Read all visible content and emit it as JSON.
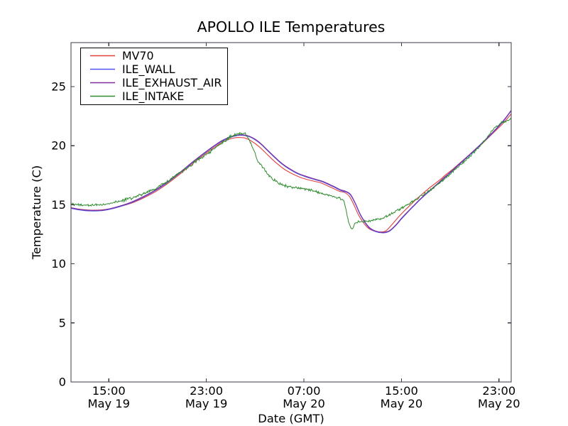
{
  "chart_data": {
    "type": "line",
    "title": "APOLLO ILE Temperatures",
    "xlabel": "Date (GMT)",
    "ylabel": "Temperature (C)",
    "grid": false,
    "legend_position": "upper left",
    "ylim": [
      0,
      28.7
    ],
    "yticks": [
      {
        "value": 0,
        "label": "0"
      },
      {
        "value": 5,
        "label": "5"
      },
      {
        "value": 10,
        "label": "10"
      },
      {
        "value": 15,
        "label": "15"
      },
      {
        "value": 20,
        "label": "20"
      },
      {
        "value": 25,
        "label": "25"
      }
    ],
    "x_axis_note": "t = hours from left edge (~12:00 May 19) to right edge (~24:00 May 20)",
    "xlim_hours": [
      0,
      36.1
    ],
    "xticks": [
      {
        "t": 3.1,
        "time": "15:00",
        "date": "May 19"
      },
      {
        "t": 11.1,
        "time": "23:00",
        "date": "May 19"
      },
      {
        "t": 19.1,
        "time": "07:00",
        "date": "May 20"
      },
      {
        "t": 27.1,
        "time": "15:00",
        "date": "May 20"
      },
      {
        "t": 35.1,
        "time": "23:00",
        "date": "May 20"
      }
    ],
    "series": [
      {
        "name": "MV70",
        "color": "#e14040",
        "style": "smooth",
        "points": [
          [
            0,
            14.75
          ],
          [
            0.7,
            14.62
          ],
          [
            1.5,
            14.55
          ],
          [
            2.5,
            14.56
          ],
          [
            3.2,
            14.66
          ],
          [
            4,
            14.85
          ],
          [
            5,
            15.15
          ],
          [
            6,
            15.6
          ],
          [
            7,
            16.15
          ],
          [
            8,
            16.85
          ],
          [
            9,
            17.65
          ],
          [
            10,
            18.5
          ],
          [
            11,
            19.3
          ],
          [
            11.8,
            19.9
          ],
          [
            12.5,
            20.35
          ],
          [
            13.2,
            20.62
          ],
          [
            13.8,
            20.7
          ],
          [
            14.4,
            20.6
          ],
          [
            15,
            20.25
          ],
          [
            15.5,
            19.85
          ],
          [
            16,
            19.35
          ],
          [
            16.5,
            18.85
          ],
          [
            17,
            18.4
          ],
          [
            17.5,
            18.0
          ],
          [
            18,
            17.7
          ],
          [
            18.5,
            17.45
          ],
          [
            19,
            17.25
          ],
          [
            19.5,
            17.1
          ],
          [
            20,
            16.98
          ],
          [
            20.5,
            16.85
          ],
          [
            21,
            16.62
          ],
          [
            21.5,
            16.38
          ],
          [
            22,
            16.15
          ],
          [
            22.4,
            16.05
          ],
          [
            22.8,
            15.75
          ],
          [
            23.2,
            15.0
          ],
          [
            23.6,
            14.1
          ],
          [
            24,
            13.45
          ],
          [
            24.4,
            13.0
          ],
          [
            24.8,
            12.8
          ],
          [
            25.3,
            12.7
          ],
          [
            25.8,
            12.78
          ],
          [
            26.3,
            13.3
          ],
          [
            26.8,
            13.9
          ],
          [
            27.3,
            14.45
          ],
          [
            27.8,
            14.95
          ],
          [
            28.3,
            15.45
          ],
          [
            28.8,
            15.9
          ],
          [
            29.3,
            16.35
          ],
          [
            29.8,
            16.75
          ],
          [
            30.3,
            17.15
          ],
          [
            30.8,
            17.6
          ],
          [
            31.3,
            18.0
          ],
          [
            31.8,
            18.45
          ],
          [
            32.3,
            18.9
          ],
          [
            32.8,
            19.35
          ],
          [
            33.3,
            19.8
          ],
          [
            33.8,
            20.25
          ],
          [
            34.3,
            20.75
          ],
          [
            34.8,
            21.25
          ],
          [
            35.3,
            21.75
          ],
          [
            35.7,
            22.2
          ],
          [
            36.1,
            22.7
          ]
        ]
      },
      {
        "name": "ILE_WALL",
        "color": "#5152ec",
        "style": "smooth",
        "points": [
          [
            0,
            14.7
          ],
          [
            0.7,
            14.56
          ],
          [
            1.5,
            14.48
          ],
          [
            2.5,
            14.5
          ],
          [
            3.2,
            14.62
          ],
          [
            4,
            14.84
          ],
          [
            5,
            15.2
          ],
          [
            6,
            15.68
          ],
          [
            7,
            16.25
          ],
          [
            8,
            16.95
          ],
          [
            9,
            17.75
          ],
          [
            10,
            18.6
          ],
          [
            11,
            19.4
          ],
          [
            11.8,
            20.0
          ],
          [
            12.5,
            20.45
          ],
          [
            13.3,
            20.78
          ],
          [
            13.9,
            20.88
          ],
          [
            14.5,
            20.8
          ],
          [
            15.1,
            20.5
          ],
          [
            15.6,
            20.1
          ],
          [
            16.1,
            19.6
          ],
          [
            16.6,
            19.1
          ],
          [
            17.1,
            18.62
          ],
          [
            17.6,
            18.22
          ],
          [
            18.1,
            17.9
          ],
          [
            18.6,
            17.62
          ],
          [
            19.1,
            17.42
          ],
          [
            19.6,
            17.25
          ],
          [
            20.1,
            17.1
          ],
          [
            20.6,
            16.95
          ],
          [
            21.1,
            16.72
          ],
          [
            21.6,
            16.48
          ],
          [
            22.1,
            16.22
          ],
          [
            22.5,
            16.1
          ],
          [
            22.9,
            15.85
          ],
          [
            23.3,
            15.12
          ],
          [
            23.7,
            14.2
          ],
          [
            24.1,
            13.5
          ],
          [
            24.5,
            13.0
          ],
          [
            25,
            12.72
          ],
          [
            25.6,
            12.62
          ],
          [
            26.1,
            12.75
          ],
          [
            26.6,
            13.2
          ],
          [
            27.1,
            13.8
          ],
          [
            27.6,
            14.35
          ],
          [
            28.1,
            14.88
          ],
          [
            28.6,
            15.4
          ],
          [
            29.1,
            15.88
          ],
          [
            29.6,
            16.32
          ],
          [
            30.1,
            16.78
          ],
          [
            30.6,
            17.25
          ],
          [
            31.1,
            17.7
          ],
          [
            31.6,
            18.18
          ],
          [
            32.1,
            18.65
          ],
          [
            32.6,
            19.12
          ],
          [
            33.1,
            19.6
          ],
          [
            33.6,
            20.08
          ],
          [
            34.1,
            20.58
          ],
          [
            34.6,
            21.1
          ],
          [
            35.1,
            21.65
          ],
          [
            35.6,
            22.25
          ],
          [
            36.1,
            22.95
          ]
        ]
      },
      {
        "name": "ILE_EXHAUST_AIR",
        "color": "#7d2f9d",
        "style": "smooth",
        "points": [
          [
            0,
            14.75
          ],
          [
            0.7,
            14.61
          ],
          [
            1.5,
            14.53
          ],
          [
            2.5,
            14.55
          ],
          [
            3.2,
            14.67
          ],
          [
            4,
            14.89
          ],
          [
            5,
            15.25
          ],
          [
            6,
            15.73
          ],
          [
            7,
            16.3
          ],
          [
            8,
            17.0
          ],
          [
            9,
            17.8
          ],
          [
            10,
            18.65
          ],
          [
            11,
            19.45
          ],
          [
            11.8,
            20.05
          ],
          [
            12.5,
            20.5
          ],
          [
            13.3,
            20.83
          ],
          [
            13.9,
            20.93
          ],
          [
            14.5,
            20.85
          ],
          [
            15.1,
            20.55
          ],
          [
            15.6,
            20.15
          ],
          [
            16.1,
            19.65
          ],
          [
            16.6,
            19.15
          ],
          [
            17.1,
            18.67
          ],
          [
            17.6,
            18.27
          ],
          [
            18.1,
            17.95
          ],
          [
            18.6,
            17.67
          ],
          [
            19.1,
            17.47
          ],
          [
            19.6,
            17.3
          ],
          [
            20.1,
            17.15
          ],
          [
            20.6,
            17.0
          ],
          [
            21.1,
            16.77
          ],
          [
            21.6,
            16.53
          ],
          [
            22.1,
            16.27
          ],
          [
            22.5,
            16.15
          ],
          [
            22.9,
            15.9
          ],
          [
            23.3,
            15.17
          ],
          [
            23.7,
            14.25
          ],
          [
            24.1,
            13.55
          ],
          [
            24.5,
            13.05
          ],
          [
            25,
            12.77
          ],
          [
            25.6,
            12.67
          ],
          [
            26.1,
            12.8
          ],
          [
            26.6,
            13.25
          ],
          [
            27.1,
            13.85
          ],
          [
            27.6,
            14.4
          ],
          [
            28.1,
            14.93
          ],
          [
            28.6,
            15.45
          ],
          [
            29.1,
            15.93
          ],
          [
            29.6,
            16.37
          ],
          [
            30.1,
            16.83
          ],
          [
            30.6,
            17.3
          ],
          [
            31.1,
            17.75
          ],
          [
            31.6,
            18.23
          ],
          [
            32.1,
            18.7
          ],
          [
            32.6,
            19.17
          ],
          [
            33.1,
            19.65
          ],
          [
            33.6,
            20.13
          ],
          [
            34.1,
            20.63
          ],
          [
            34.6,
            21.15
          ],
          [
            35.1,
            21.7
          ],
          [
            35.6,
            22.3
          ],
          [
            36.1,
            23.0
          ]
        ]
      },
      {
        "name": "ILE_INTAKE",
        "color": "#2e8b2e",
        "style": "noisy",
        "noise_amp": 0.1,
        "points": [
          [
            0,
            15.05
          ],
          [
            0.5,
            15.0
          ],
          [
            1,
            14.98
          ],
          [
            1.5,
            14.97
          ],
          [
            2,
            15.0
          ],
          [
            2.5,
            15.02
          ],
          [
            3,
            15.08
          ],
          [
            3.5,
            15.18
          ],
          [
            4,
            15.3
          ],
          [
            4.5,
            15.42
          ],
          [
            5,
            15.57
          ],
          [
            5.5,
            15.75
          ],
          [
            6,
            15.95
          ],
          [
            6.5,
            16.17
          ],
          [
            7,
            16.42
          ],
          [
            7.5,
            16.7
          ],
          [
            8,
            17.02
          ],
          [
            8.5,
            17.38
          ],
          [
            9,
            17.75
          ],
          [
            9.5,
            18.12
          ],
          [
            10,
            18.5
          ],
          [
            10.5,
            18.85
          ],
          [
            11,
            19.2
          ],
          [
            11.5,
            19.55
          ],
          [
            12,
            19.95
          ],
          [
            12.5,
            20.35
          ],
          [
            13,
            20.7
          ],
          [
            13.5,
            20.95
          ],
          [
            13.9,
            21.05
          ],
          [
            14.3,
            21.0
          ],
          [
            14.6,
            20.55
          ],
          [
            14.85,
            19.95
          ],
          [
            15.05,
            19.45
          ],
          [
            15.3,
            18.7
          ],
          [
            15.55,
            18.35
          ],
          [
            15.8,
            18.1
          ],
          [
            16.1,
            17.65
          ],
          [
            16.5,
            17.2
          ],
          [
            16.9,
            16.9
          ],
          [
            17.3,
            16.7
          ],
          [
            17.8,
            16.55
          ],
          [
            18.3,
            16.45
          ],
          [
            18.8,
            16.4
          ],
          [
            19.3,
            16.3
          ],
          [
            19.8,
            16.2
          ],
          [
            20.3,
            16.05
          ],
          [
            20.8,
            15.9
          ],
          [
            21.3,
            15.78
          ],
          [
            21.8,
            15.62
          ],
          [
            22.2,
            15.5
          ],
          [
            22.35,
            15.4
          ],
          [
            22.55,
            14.6
          ],
          [
            22.75,
            13.6
          ],
          [
            22.95,
            13.05
          ],
          [
            23.1,
            12.95
          ],
          [
            23.25,
            13.4
          ],
          [
            23.5,
            13.52
          ],
          [
            23.9,
            13.6
          ],
          [
            24.4,
            13.62
          ],
          [
            24.9,
            13.7
          ],
          [
            25.4,
            13.82
          ],
          [
            25.9,
            14.0
          ],
          [
            26.4,
            14.3
          ],
          [
            26.9,
            14.6
          ],
          [
            27.4,
            14.9
          ],
          [
            27.9,
            15.2
          ],
          [
            28.4,
            15.5
          ],
          [
            28.9,
            15.85
          ],
          [
            29.4,
            16.2
          ],
          [
            29.9,
            16.6
          ],
          [
            30.4,
            17.0
          ],
          [
            30.9,
            17.45
          ],
          [
            31.4,
            17.9
          ],
          [
            31.9,
            18.35
          ],
          [
            32.4,
            18.8
          ],
          [
            32.9,
            19.3
          ],
          [
            33.4,
            19.8
          ],
          [
            33.9,
            20.4
          ],
          [
            34.3,
            20.95
          ],
          [
            34.7,
            21.45
          ],
          [
            35,
            21.75
          ],
          [
            35.3,
            21.95
          ],
          [
            35.6,
            22.05
          ],
          [
            35.85,
            22.1
          ],
          [
            36.1,
            22.35
          ]
        ]
      }
    ]
  },
  "legend": {
    "items": [
      "MV70",
      "ILE_WALL",
      "ILE_EXHAUST_AIR",
      "ILE_INTAKE"
    ]
  },
  "style": {
    "frame_color": "#3d3844",
    "background": "#ffffff",
    "text_color": "#000000"
  }
}
